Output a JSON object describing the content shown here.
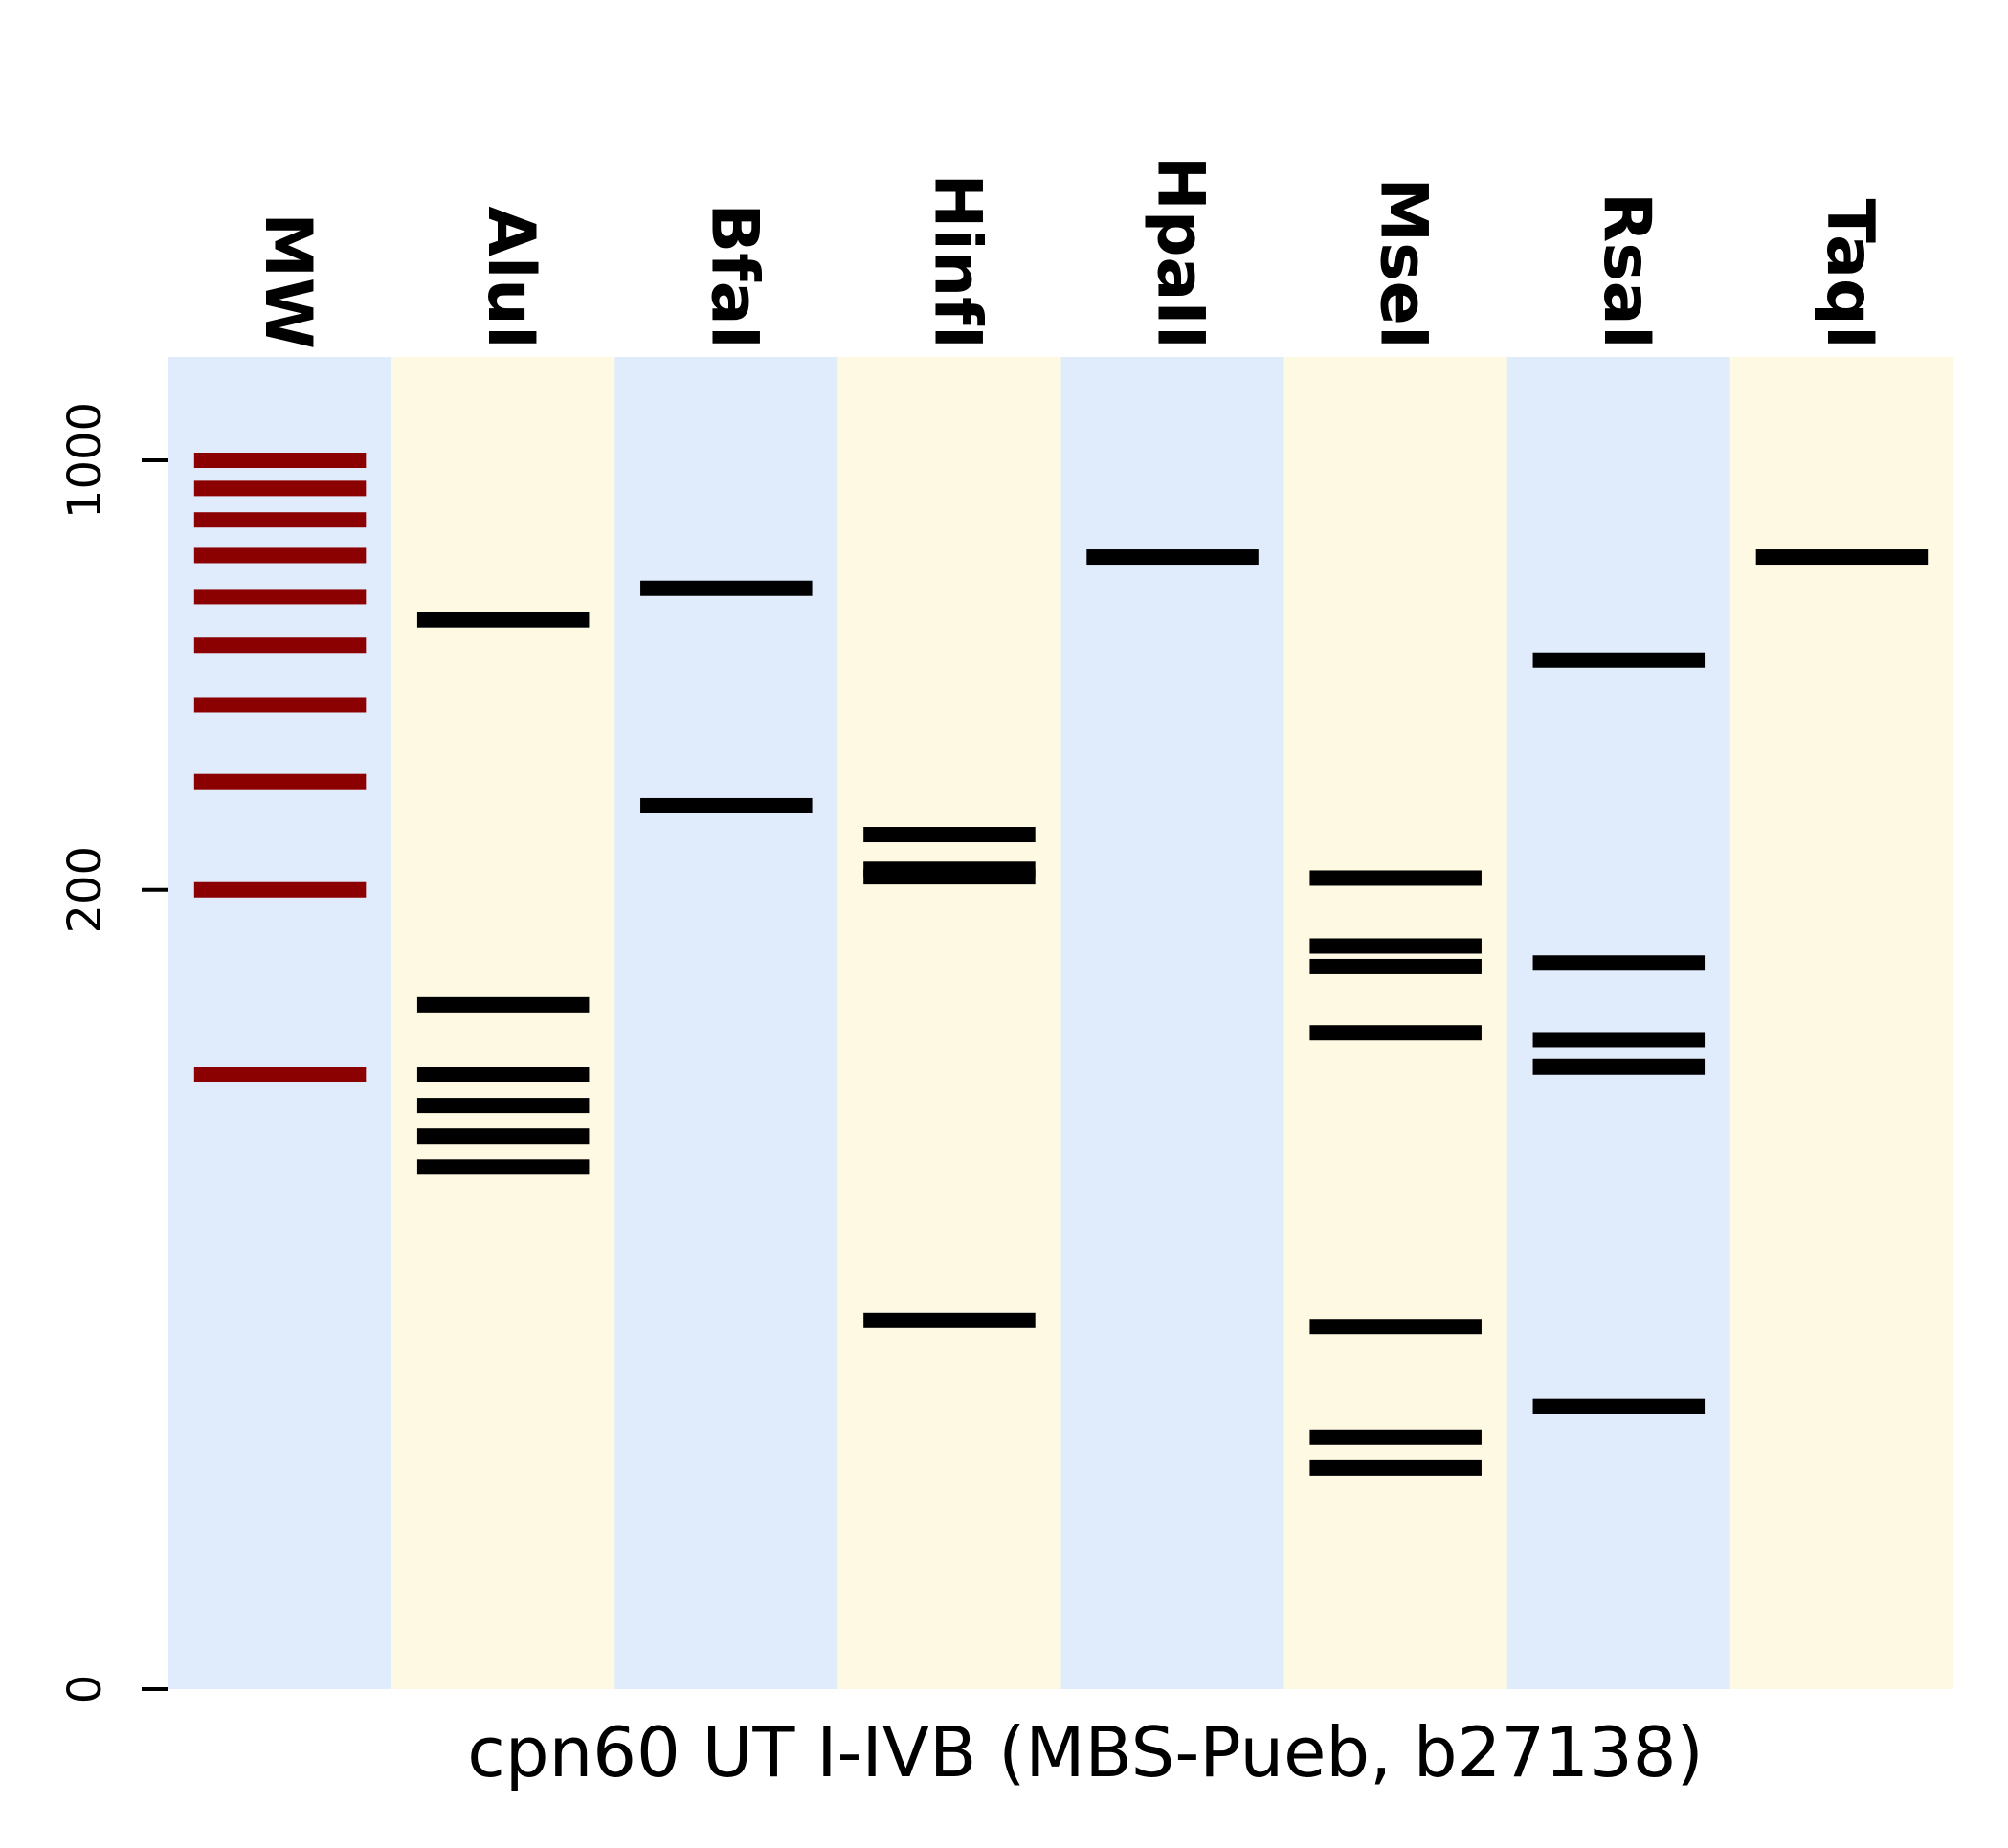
{
  "chart_data": {
    "type": "gel",
    "title": "",
    "xlabel": "cpn60 UT I-IVB (MBS-Pueb, b27138)",
    "ylabel": "",
    "y_scale": "symlog",
    "ylim": [
      0,
      1300
    ],
    "yticks": [
      0,
      200,
      1000
    ],
    "ytick_labels": [
      "0",
      "200",
      "1000"
    ],
    "lanes": [
      "MW",
      "AluI",
      "BfaI",
      "HinfI",
      "HpaII",
      "MseI",
      "RsaI",
      "TaqI"
    ],
    "lane_colors": [
      "#e0ebfc",
      "#fdf9e3",
      "#e0ebfc",
      "#fdf9e3",
      "#e0ebfc",
      "#fdf9e3",
      "#e0ebfc",
      "#fdf9e3"
    ],
    "marker_color": "#8b0000",
    "band_color": "#000000",
    "series": [
      {
        "name": "MW",
        "values": [
          1000,
          900,
          800,
          700,
          600,
          500,
          400,
          300,
          200,
          100
        ]
      },
      {
        "name": "AluI",
        "values": [
          550,
          130,
          100,
          95,
          90,
          85
        ]
      },
      {
        "name": "BfaI",
        "values": [
          619,
          274
        ]
      },
      {
        "name": "HinfI",
        "values": [
          216,
          210,
          246,
          60
        ]
      },
      {
        "name": "HpaII",
        "values": [
          696
        ]
      },
      {
        "name": "MseI",
        "values": [
          209,
          162,
          150,
          117,
          59,
          41,
          36
        ]
      },
      {
        "name": "RsaI",
        "values": [
          473,
          152,
          114,
          103,
          46
        ]
      },
      {
        "name": "TaqI",
        "values": [
          696
        ]
      }
    ]
  }
}
